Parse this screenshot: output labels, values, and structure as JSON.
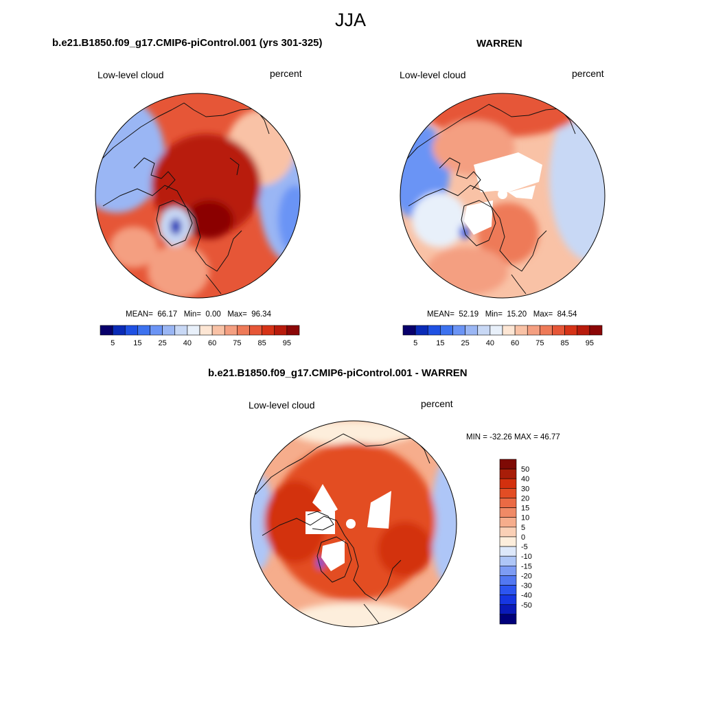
{
  "figure": {
    "title": "JJA"
  },
  "colors": {
    "abs_scale": [
      "#08006b",
      "#0a2bb7",
      "#1f51e3",
      "#3d72ef",
      "#6b94f5",
      "#9ab6f4",
      "#c8d8f5",
      "#e8f0fa",
      "#fde6d4",
      "#f9c2a6",
      "#f49f81",
      "#ee7a58",
      "#e65637",
      "#d63317",
      "#b81b0c",
      "#8b0606"
    ],
    "diff_scale": [
      "#00007a",
      "#0a1ab8",
      "#1636e2",
      "#2c55f0",
      "#5278f2",
      "#7d9cf4",
      "#aec6f7",
      "#dde8fa",
      "#fdeedc",
      "#fad0b6",
      "#f6ad8c",
      "#f08a66",
      "#ea6a44",
      "#e34d24",
      "#d3300e",
      "#a81d08",
      "#7e0a05"
    ]
  },
  "panels": [
    {
      "id": "model",
      "case_title": "b.e21.B1850.f09_g17.CMIP6-piControl.001 (yrs 301-325)",
      "variable": "Low-level cloud",
      "units": "percent",
      "stats": {
        "mean_label": "MEAN=",
        "mean": "66.17",
        "min_label": "Min=",
        "min": "0.00",
        "max_label": "Max=",
        "max": "96.34"
      },
      "colorbar_ticks": [
        "5",
        "15",
        "25",
        "40",
        "60",
        "75",
        "85",
        "95"
      ]
    },
    {
      "id": "obs",
      "case_title": "WARREN",
      "variable": "Low-level cloud",
      "units": "percent",
      "stats": {
        "mean_label": "MEAN=",
        "mean": "52.19",
        "min_label": "Min=",
        "min": "15.20",
        "max_label": "Max=",
        "max": "84.54"
      },
      "colorbar_ticks": [
        "5",
        "15",
        "25",
        "40",
        "60",
        "75",
        "85",
        "95"
      ]
    },
    {
      "id": "diff",
      "case_title": "b.e21.B1850.f09_g17.CMIP6-piControl.001 - WARREN",
      "variable": "Low-level cloud",
      "units": "percent",
      "stats_line": "MIN = -32.26 MAX =  46.77",
      "colorbar_ticks": [
        "50",
        "40",
        "30",
        "20",
        "15",
        "10",
        "5",
        "0",
        "-5",
        "-10",
        "-15",
        "-20",
        "-30",
        "-40",
        "-50"
      ]
    }
  ]
}
